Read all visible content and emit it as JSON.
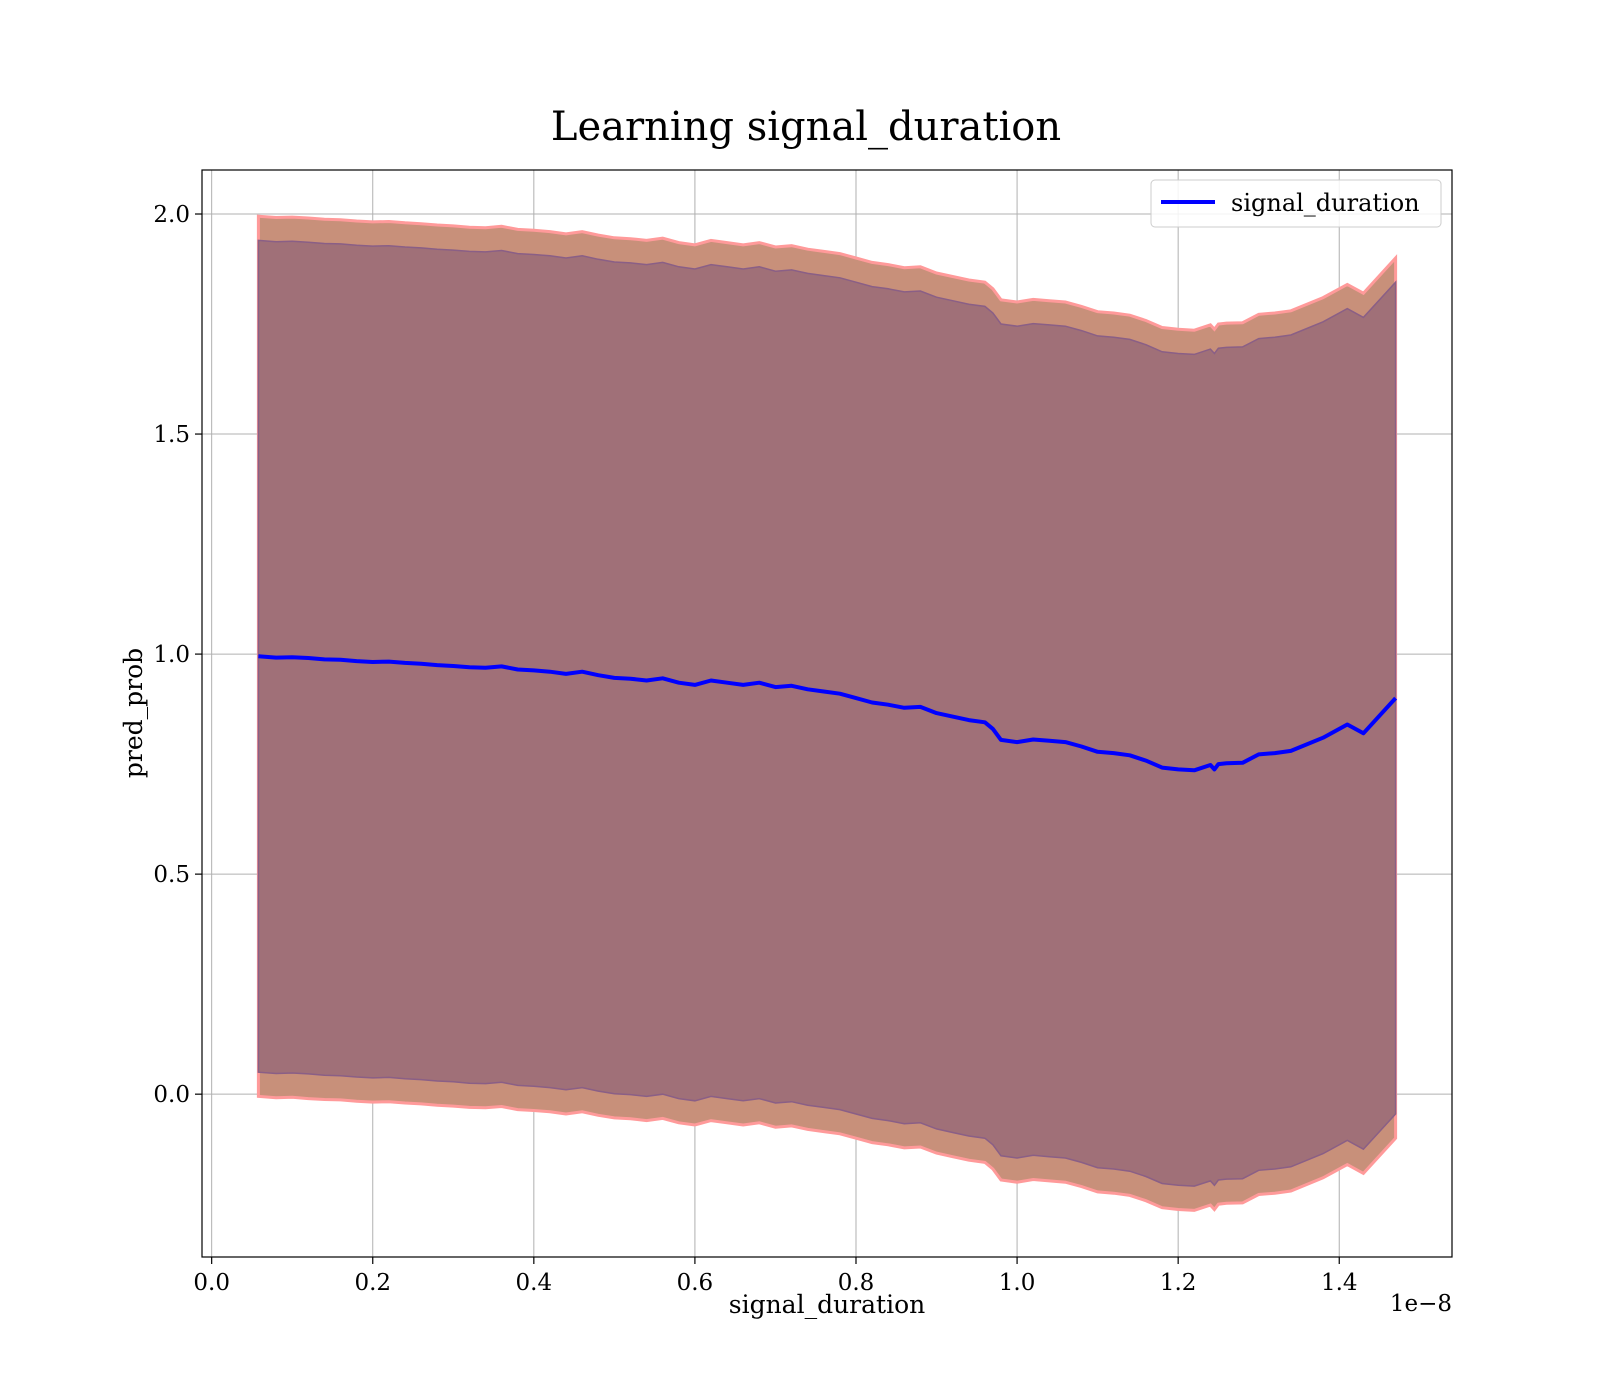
{
  "chart_data": {
    "type": "line",
    "title": "Learning signal_duration",
    "xlabel": "signal_duration",
    "ylabel": "pred_prob",
    "x_offset_label": "1e−8",
    "xlim": [
      -0.012,
      1.54
    ],
    "ylim": [
      -0.37,
      2.1
    ],
    "x_ticks": [
      0.0,
      0.2,
      0.4,
      0.6,
      0.8,
      1.0,
      1.2,
      1.4
    ],
    "x_tick_labels": [
      "0.0",
      "0.2",
      "0.4",
      "0.6",
      "0.8",
      "1.0",
      "1.2",
      "1.4"
    ],
    "y_ticks": [
      0.0,
      0.5,
      1.0,
      1.5,
      2.0
    ],
    "y_tick_labels": [
      "0.0",
      "0.5",
      "1.0",
      "1.5",
      "2.0"
    ],
    "grid": true,
    "legend": {
      "position": "top-right",
      "entries": [
        "signal_duration"
      ]
    },
    "colors": {
      "line": "#0000ff",
      "outer_band": "#c8907a",
      "outer_band_edge": "#ff9a9a",
      "inner_band": "#a07078",
      "inner_band_edge": "#8a5f86",
      "grid": "#b0b0b0"
    },
    "series": [
      {
        "name": "signal_duration",
        "x": [
          0.058,
          0.08,
          0.1,
          0.12,
          0.14,
          0.16,
          0.18,
          0.2,
          0.22,
          0.24,
          0.26,
          0.28,
          0.3,
          0.32,
          0.34,
          0.36,
          0.38,
          0.4,
          0.42,
          0.44,
          0.46,
          0.48,
          0.5,
          0.52,
          0.54,
          0.56,
          0.58,
          0.6,
          0.62,
          0.64,
          0.66,
          0.68,
          0.7,
          0.72,
          0.74,
          0.76,
          0.78,
          0.8,
          0.82,
          0.84,
          0.86,
          0.88,
          0.9,
          0.92,
          0.94,
          0.96,
          0.97,
          0.98,
          1.0,
          1.02,
          1.04,
          1.06,
          1.08,
          1.1,
          1.12,
          1.14,
          1.16,
          1.18,
          1.2,
          1.22,
          1.24,
          1.245,
          1.25,
          1.26,
          1.28,
          1.3,
          1.32,
          1.34,
          1.38,
          1.41,
          1.43,
          1.47
        ],
        "y": [
          0.995,
          0.992,
          0.993,
          0.991,
          0.988,
          0.987,
          0.984,
          0.982,
          0.983,
          0.98,
          0.978,
          0.975,
          0.973,
          0.97,
          0.969,
          0.972,
          0.965,
          0.963,
          0.96,
          0.955,
          0.96,
          0.952,
          0.946,
          0.944,
          0.94,
          0.945,
          0.935,
          0.93,
          0.94,
          0.935,
          0.93,
          0.935,
          0.925,
          0.928,
          0.92,
          0.915,
          0.91,
          0.9,
          0.89,
          0.885,
          0.878,
          0.88,
          0.866,
          0.858,
          0.85,
          0.845,
          0.83,
          0.805,
          0.8,
          0.806,
          0.803,
          0.8,
          0.79,
          0.778,
          0.775,
          0.77,
          0.758,
          0.742,
          0.738,
          0.736,
          0.748,
          0.738,
          0.75,
          0.752,
          0.753,
          0.772,
          0.775,
          0.78,
          0.81,
          0.84,
          0.82,
          0.9
        ]
      }
    ],
    "bands": [
      {
        "role": "outer",
        "lower": [
          -0.005,
          -0.008,
          -0.007,
          -0.01,
          -0.012,
          -0.013,
          -0.016,
          -0.018,
          -0.017,
          -0.02,
          -0.022,
          -0.025,
          -0.027,
          -0.03,
          -0.031,
          -0.028,
          -0.035,
          -0.037,
          -0.04,
          -0.045,
          -0.04,
          -0.048,
          -0.054,
          -0.056,
          -0.06,
          -0.055,
          -0.065,
          -0.07,
          -0.06,
          -0.065,
          -0.07,
          -0.065,
          -0.075,
          -0.072,
          -0.08,
          -0.085,
          -0.09,
          -0.1,
          -0.11,
          -0.115,
          -0.122,
          -0.12,
          -0.134,
          -0.142,
          -0.15,
          -0.155,
          -0.17,
          -0.195,
          -0.2,
          -0.194,
          -0.197,
          -0.2,
          -0.21,
          -0.222,
          -0.225,
          -0.23,
          -0.242,
          -0.258,
          -0.262,
          -0.264,
          -0.252,
          -0.262,
          -0.25,
          -0.248,
          -0.247,
          -0.228,
          -0.225,
          -0.22,
          -0.19,
          -0.16,
          -0.18,
          -0.1
        ],
        "upper": [
          1.995,
          1.992,
          1.993,
          1.991,
          1.988,
          1.987,
          1.984,
          1.982,
          1.983,
          1.98,
          1.978,
          1.975,
          1.973,
          1.97,
          1.969,
          1.972,
          1.965,
          1.963,
          1.96,
          1.955,
          1.96,
          1.952,
          1.946,
          1.944,
          1.94,
          1.945,
          1.935,
          1.93,
          1.94,
          1.935,
          1.93,
          1.935,
          1.925,
          1.928,
          1.92,
          1.915,
          1.91,
          1.9,
          1.89,
          1.885,
          1.878,
          1.88,
          1.866,
          1.858,
          1.85,
          1.845,
          1.83,
          1.805,
          1.8,
          1.806,
          1.803,
          1.8,
          1.79,
          1.778,
          1.775,
          1.77,
          1.758,
          1.742,
          1.738,
          1.736,
          1.748,
          1.738,
          1.75,
          1.752,
          1.753,
          1.772,
          1.775,
          1.78,
          1.81,
          1.84,
          1.82,
          1.9
        ]
      },
      {
        "role": "inner",
        "lower": [
          0.05,
          0.047,
          0.048,
          0.046,
          0.043,
          0.042,
          0.039,
          0.037,
          0.038,
          0.035,
          0.033,
          0.03,
          0.028,
          0.025,
          0.024,
          0.027,
          0.02,
          0.018,
          0.015,
          0.01,
          0.015,
          0.007,
          0.001,
          -0.001,
          -0.005,
          0.0,
          -0.01,
          -0.015,
          -0.005,
          -0.01,
          -0.015,
          -0.01,
          -0.02,
          -0.017,
          -0.025,
          -0.03,
          -0.035,
          -0.045,
          -0.055,
          -0.06,
          -0.067,
          -0.065,
          -0.079,
          -0.087,
          -0.095,
          -0.1,
          -0.115,
          -0.14,
          -0.145,
          -0.139,
          -0.142,
          -0.145,
          -0.155,
          -0.167,
          -0.17,
          -0.175,
          -0.187,
          -0.203,
          -0.207,
          -0.209,
          -0.197,
          -0.207,
          -0.195,
          -0.193,
          -0.192,
          -0.173,
          -0.17,
          -0.165,
          -0.135,
          -0.105,
          -0.125,
          -0.045
        ],
        "upper": [
          1.94,
          1.937,
          1.938,
          1.936,
          1.933,
          1.932,
          1.929,
          1.927,
          1.928,
          1.925,
          1.923,
          1.92,
          1.918,
          1.915,
          1.914,
          1.917,
          1.91,
          1.908,
          1.905,
          1.9,
          1.905,
          1.897,
          1.891,
          1.889,
          1.885,
          1.89,
          1.88,
          1.875,
          1.885,
          1.88,
          1.875,
          1.88,
          1.87,
          1.873,
          1.865,
          1.86,
          1.855,
          1.845,
          1.835,
          1.83,
          1.823,
          1.825,
          1.811,
          1.803,
          1.795,
          1.79,
          1.775,
          1.75,
          1.745,
          1.751,
          1.748,
          1.745,
          1.735,
          1.723,
          1.72,
          1.715,
          1.703,
          1.687,
          1.683,
          1.681,
          1.693,
          1.683,
          1.695,
          1.697,
          1.698,
          1.717,
          1.72,
          1.725,
          1.755,
          1.785,
          1.765,
          1.845
        ]
      }
    ]
  }
}
